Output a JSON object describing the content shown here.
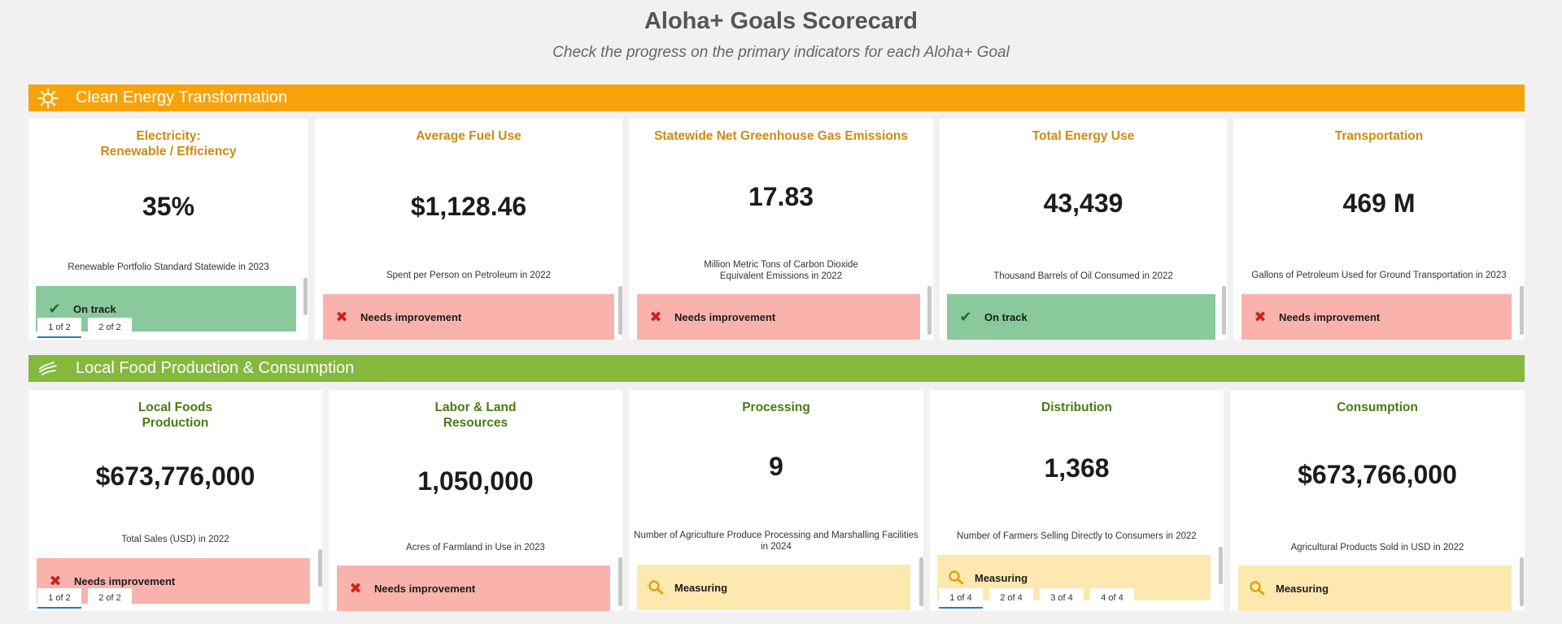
{
  "header": {
    "title": "Aloha+ Goals Scorecard",
    "subtitle": "Check the progress on the primary indicators for each Aloha+ Goal"
  },
  "colors": {
    "energy_band": "#f6a30b",
    "food_band": "#84b93d",
    "on_track": "#89c99b",
    "needs_improvement": "#f9b3ac",
    "measuring": "#fde9b0"
  },
  "energy": {
    "band_label": "Clean Energy Transformation",
    "band_icon": "sun-icon",
    "cards": [
      {
        "title": "Electricity:\nRenewable / Efficiency",
        "value": "35%",
        "desc": "Renewable Portfolio Standard Statewide in 2023",
        "status": "On track",
        "status_icon": "check-icon"
      },
      {
        "title": "Average Fuel Use",
        "value": "$1,128.46",
        "desc": "Spent per Person on Petroleum in 2022",
        "status": "Needs improvement",
        "status_icon": "x-icon"
      },
      {
        "title": "Statewide Net Greenhouse Gas Emissions",
        "value": "17.83",
        "desc": "Million Metric Tons of Carbon Dioxide\nEquivalent Emissions in 2022",
        "status": "Needs improvement",
        "status_icon": "x-icon"
      },
      {
        "title": "Total Energy Use",
        "value": "43,439",
        "desc": "Thousand Barrels of Oil Consumed in 2022",
        "status": "On track",
        "status_icon": "check-icon"
      },
      {
        "title": "Transportation",
        "value": "469 M",
        "desc": "Gallons of Petroleum Used for Ground Transportation in 2023",
        "status": "Needs improvement",
        "status_icon": "x-icon"
      }
    ],
    "pager": [
      "1 of 2",
      "2 of 2"
    ]
  },
  "food": {
    "band_label": "Local Food Production & Consumption",
    "band_icon": "wave-icon",
    "cards": [
      {
        "title": "Local Foods\nProduction",
        "value": "$673,776,000",
        "desc": "Total Sales (USD) in 2022",
        "status": "Needs improvement",
        "status_icon": "x-icon"
      },
      {
        "title": "Labor & Land\nResources",
        "value": "1,050,000",
        "desc": "Acres of Farmland in Use in 2023",
        "status": "Needs improvement",
        "status_icon": "x-icon"
      },
      {
        "title": "Processing",
        "value": "9",
        "desc": "Number of Agriculture Produce Processing and Marshalling Facilities in 2024",
        "status": "Measuring",
        "status_icon": "magnifier-icon"
      },
      {
        "title": "Distribution",
        "value": "1,368",
        "desc": "Number of Farmers Selling Directly to Consumers in 2022",
        "status": "Measuring",
        "status_icon": "magnifier-icon"
      },
      {
        "title": "Consumption",
        "value": "$673,766,000",
        "desc": "Agricultural Products Sold in USD in 2022",
        "status": "Measuring",
        "status_icon": "magnifier-icon"
      }
    ],
    "pager_left": [
      "1 of 2",
      "2 of 2"
    ],
    "pager_distribution": [
      "1 of 4",
      "2 of 4",
      "3 of 4",
      "4 of 4"
    ]
  }
}
